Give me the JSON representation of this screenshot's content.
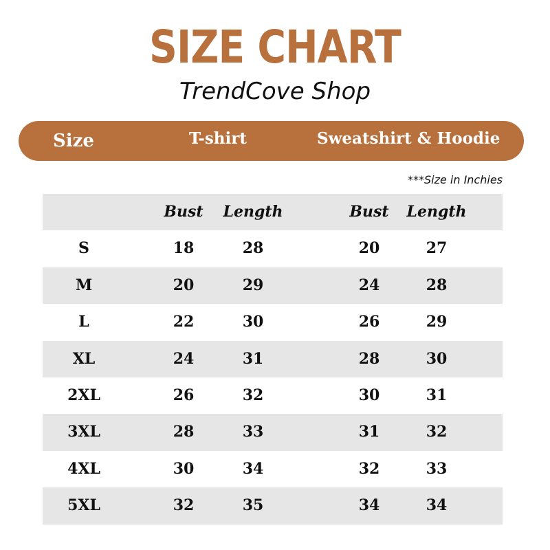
{
  "header": {
    "title": "SIZE CHART",
    "subtitle": "TrendCove Shop"
  },
  "banner": {
    "size_label": "Size",
    "tshirt_label": "T-shirt",
    "sweatshirt_label": "Sweatshirt & Hoodie"
  },
  "note": "***Size in Inchies",
  "table": {
    "columns": [
      "",
      "Bust",
      "Length",
      "Bust",
      "Length"
    ],
    "rows": [
      [
        "S",
        "18",
        "28",
        "20",
        "27"
      ],
      [
        "M",
        "20",
        "29",
        "24",
        "28"
      ],
      [
        "L",
        "22",
        "30",
        "26",
        "29"
      ],
      [
        "XL",
        "24",
        "31",
        "28",
        "30"
      ],
      [
        "2XL",
        "26",
        "32",
        "30",
        "31"
      ],
      [
        "3XL",
        "28",
        "33",
        "31",
        "32"
      ],
      [
        "4XL",
        "30",
        "34",
        "32",
        "33"
      ],
      [
        "5XL",
        "32",
        "35",
        "34",
        "34"
      ]
    ]
  },
  "colors": {
    "accent": "#b8703d",
    "row_shade": "#e6e6e6",
    "text": "#111111"
  }
}
